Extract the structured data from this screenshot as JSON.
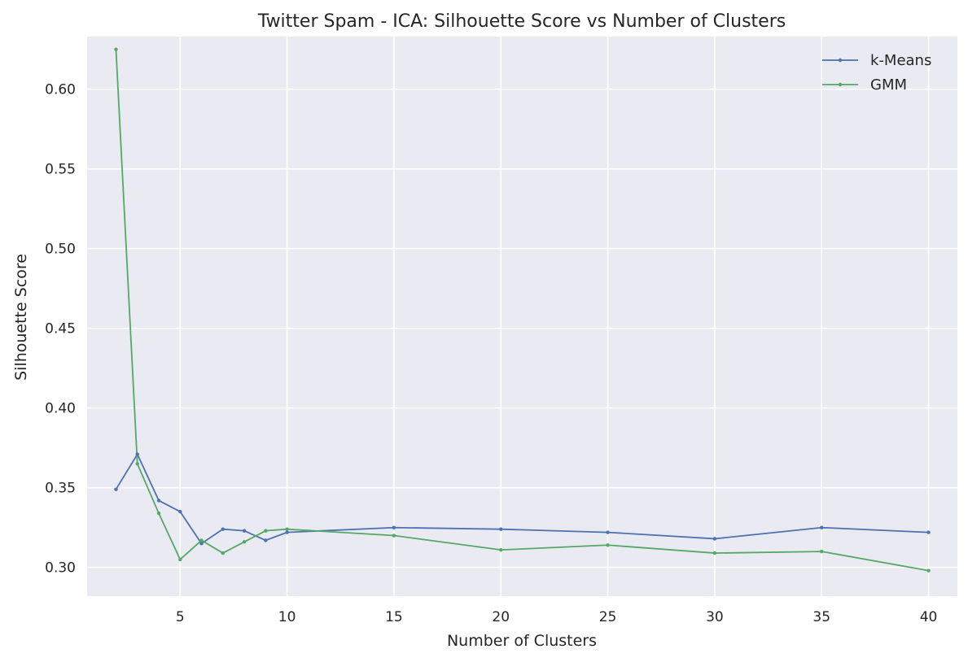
{
  "chart_data": {
    "type": "line",
    "title": "Twitter Spam - ICA: Silhouette Score vs Number of Clusters",
    "xlabel": "Number of Clusters",
    "ylabel": "Silhouette Score",
    "xlim": [
      0.65,
      41.35
    ],
    "ylim": [
      0.282,
      0.633
    ],
    "xticks": [
      5,
      10,
      15,
      20,
      25,
      30,
      35,
      40
    ],
    "yticks": [
      0.3,
      0.35,
      0.4,
      0.45,
      0.5,
      0.55,
      0.6
    ],
    "ytick_labels": [
      "0.30",
      "0.35",
      "0.40",
      "0.45",
      "0.50",
      "0.55",
      "0.60"
    ],
    "grid": true,
    "legend": "top-right",
    "x": [
      2,
      3,
      4,
      5,
      6,
      7,
      8,
      9,
      10,
      15,
      20,
      25,
      30,
      35,
      40
    ],
    "series": [
      {
        "name": "k-Means",
        "color": "#4c72b0",
        "values": [
          0.349,
          0.371,
          0.342,
          0.335,
          0.315,
          0.324,
          0.323,
          0.317,
          0.322,
          0.325,
          0.324,
          0.322,
          0.318,
          0.325,
          0.322
        ]
      },
      {
        "name": "GMM",
        "color": "#55a868",
        "values": [
          0.625,
          0.365,
          0.334,
          0.305,
          0.317,
          0.309,
          0.316,
          0.323,
          0.324,
          0.32,
          0.311,
          0.314,
          0.309,
          0.31,
          0.298
        ]
      }
    ]
  },
  "colors": {
    "plot_background": "#eaeaf2",
    "grid": "#ffffff",
    "text": "#262626"
  }
}
